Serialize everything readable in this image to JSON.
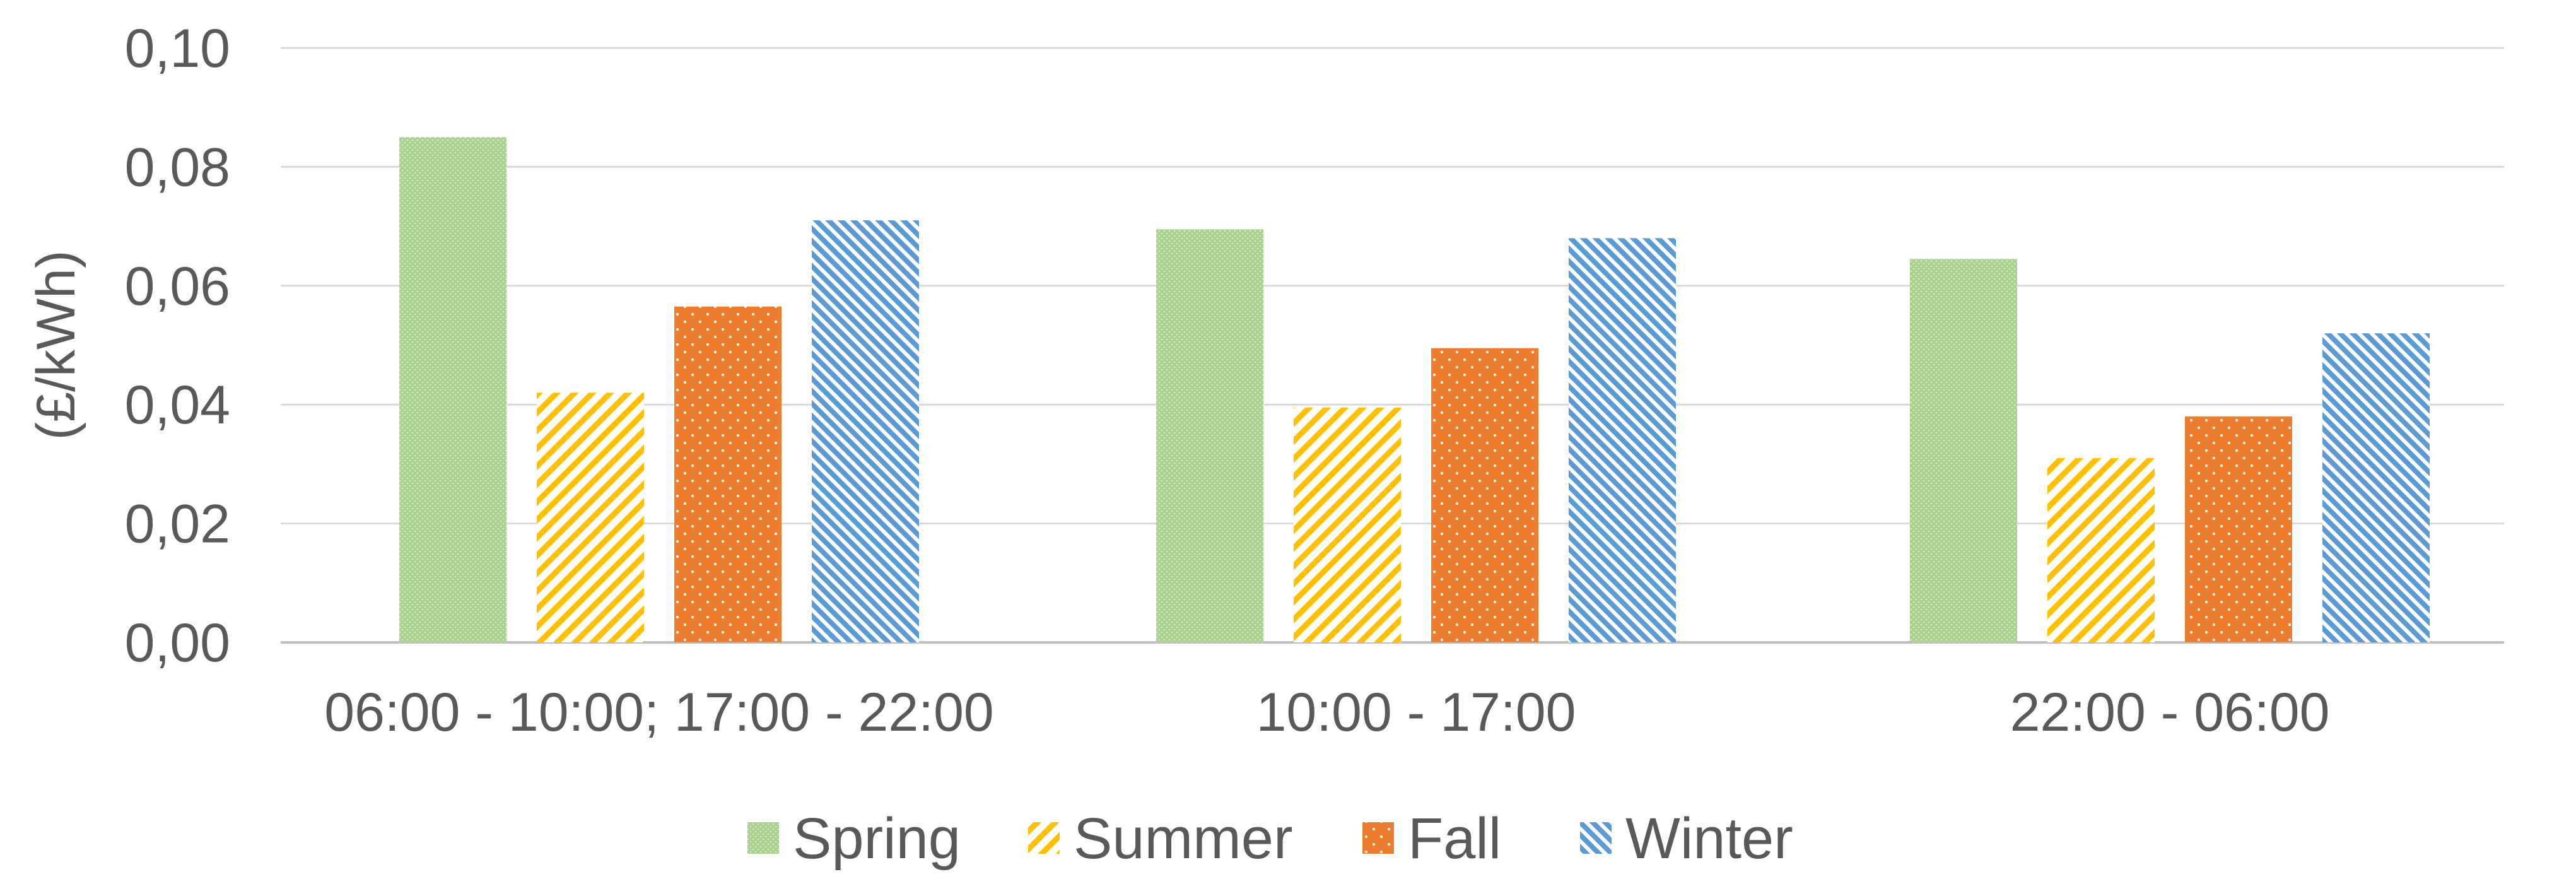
{
  "chart_data": {
    "type": "bar",
    "ylabel": "(£/kWh)",
    "xlabel": "",
    "ylim": [
      0,
      0.1
    ],
    "yticks": [
      "0,00",
      "0,02",
      "0,04",
      "0,06",
      "0,08",
      "0,10"
    ],
    "grid": true,
    "legend_position": "bottom",
    "categories": [
      "06:00 - 10:00; 17:00 - 22:00",
      "10:00 - 17:00",
      "22:00 - 06:00"
    ],
    "series": [
      {
        "name": "Spring",
        "values": [
          0.085,
          0.0695,
          0.0645
        ],
        "color": "#a9d18e",
        "pattern": "dots"
      },
      {
        "name": "Summer",
        "values": [
          0.042,
          0.0395,
          0.031
        ],
        "color": "#ffc000",
        "pattern": "diagonal"
      },
      {
        "name": "Fall",
        "values": [
          0.0565,
          0.0495,
          0.038
        ],
        "color": "#ed7d31",
        "pattern": "white-dots"
      },
      {
        "name": "Winter",
        "values": [
          0.071,
          0.068,
          0.052
        ],
        "color": "#5b9bd5",
        "pattern": "diagonal-dense"
      }
    ]
  }
}
